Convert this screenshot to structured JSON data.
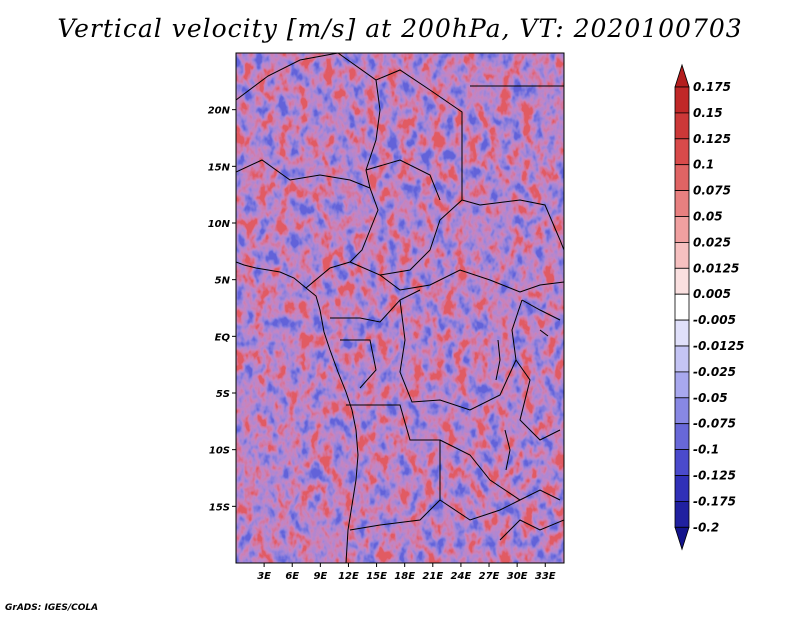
{
  "title": "Vertical velocity [m/s] at 200hPa, VT: 2020100703",
  "credit": "GrADS: IGES/COLA",
  "chart_data": {
    "type": "heatmap",
    "title": "Vertical velocity [m/s] at 200hPa, VT: 2020100703",
    "variable": "Vertical velocity",
    "units": "m/s",
    "level": "200hPa",
    "valid_time": "2020100703",
    "lon_range": [
      0,
      35
    ],
    "lat_range": [
      -20,
      25
    ],
    "x_ticks": [
      {
        "value": 3,
        "label": "3E"
      },
      {
        "value": 6,
        "label": "6E"
      },
      {
        "value": 9,
        "label": "9E"
      },
      {
        "value": 12,
        "label": "12E"
      },
      {
        "value": 15,
        "label": "15E"
      },
      {
        "value": 18,
        "label": "18E"
      },
      {
        "value": 21,
        "label": "21E"
      },
      {
        "value": 24,
        "label": "24E"
      },
      {
        "value": 27,
        "label": "27E"
      },
      {
        "value": 30,
        "label": "30E"
      },
      {
        "value": 33,
        "label": "33E"
      }
    ],
    "y_ticks": [
      {
        "value": 20,
        "label": "20N"
      },
      {
        "value": 15,
        "label": "15N"
      },
      {
        "value": 10,
        "label": "10N"
      },
      {
        "value": 5,
        "label": "5N"
      },
      {
        "value": 0,
        "label": "EQ"
      },
      {
        "value": -5,
        "label": "5S"
      },
      {
        "value": -10,
        "label": "10S"
      },
      {
        "value": -15,
        "label": "15S"
      }
    ],
    "colorbar": {
      "levels": [
        "0.175",
        "0.15",
        "0.125",
        "0.1",
        "0.075",
        "0.05",
        "0.025",
        "0.0125",
        "0.005",
        "-0.005",
        "-0.0125",
        "-0.025",
        "-0.05",
        "-0.075",
        "-0.1",
        "-0.125",
        "-0.175",
        "-0.2"
      ],
      "colors": [
        "#b41e1e",
        "#c02828",
        "#cc3838",
        "#d84a4a",
        "#e06464",
        "#e88080",
        "#f0a0a0",
        "#f6c0c0",
        "#fae0e0",
        "#ffffff",
        "#e0e0fa",
        "#c4c4f4",
        "#a8a8ee",
        "#8888e4",
        "#6868d8",
        "#4a4acc",
        "#3030b8",
        "#2020a0",
        "#14148c"
      ]
    }
  }
}
